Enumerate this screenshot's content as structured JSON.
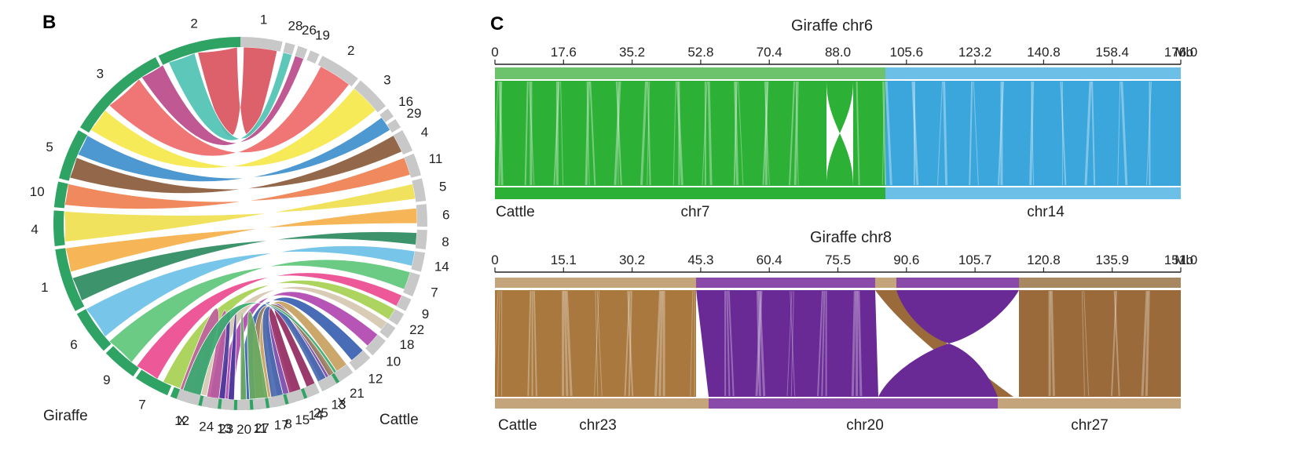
{
  "panel_b": {
    "label": "B",
    "giraffe_label": "Giraffe",
    "cattle_label": "Cattle",
    "giraffe_chrs": [
      "2",
      "3",
      "5",
      "10",
      "4",
      "1",
      "6",
      "9",
      "7",
      "12",
      "13",
      "11",
      "8",
      "14",
      "X"
    ],
    "cattle_chrs": [
      "1",
      "28",
      "26",
      "19",
      "2",
      "3",
      "16",
      "29",
      "4",
      "11",
      "5",
      "6",
      "8",
      "14",
      "7",
      "9",
      "22",
      "18",
      "10",
      "12",
      "21",
      "13",
      "25",
      "15",
      "17",
      "27",
      "20",
      "23",
      "24",
      "X"
    ]
  },
  "panel_c": {
    "label": "C",
    "top": {
      "title": "Giraffe chr6",
      "ticks": [
        "0",
        "17.6",
        "35.2",
        "52.8",
        "70.4",
        "88.0",
        "105.6",
        "123.2",
        "140.8",
        "158.4",
        "176.0"
      ],
      "unit": "Mb",
      "species_label": "Cattle",
      "segments": [
        {
          "name": "chr7",
          "color": "#2db036"
        },
        {
          "name": "chr14",
          "color": "#3ba6dc"
        }
      ]
    },
    "bottom": {
      "title": "Giraffe chr8",
      "ticks": [
        "0",
        "15.1",
        "30.2",
        "45.3",
        "60.4",
        "75.5",
        "90.6",
        "105.7",
        "120.8",
        "135.9",
        "151.0"
      ],
      "unit": "Mb",
      "species_label": "Cattle",
      "segments": [
        {
          "name": "chr23",
          "color": "#a8783e"
        },
        {
          "name": "chr20",
          "color": "#6a2a96"
        },
        {
          "name": "chr27",
          "color": "#9a6a3a"
        }
      ]
    }
  }
}
